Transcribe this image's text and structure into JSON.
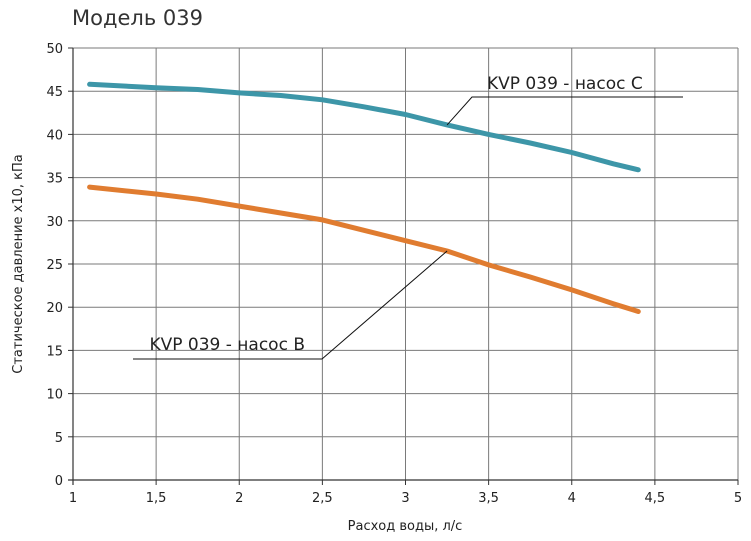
{
  "chart_data": {
    "type": "line",
    "title": "Модель 039",
    "xlabel": "Расход воды, л/с",
    "ylabel": "Статическое давление х10, кПа",
    "xlim": [
      1,
      5
    ],
    "ylim": [
      0,
      50
    ],
    "x_ticks": [
      "1",
      "1,5",
      "2",
      "2,5",
      "3",
      "3,5",
      "4",
      "4,5",
      "5"
    ],
    "y_ticks": [
      "0",
      "5",
      "10",
      "15",
      "20",
      "25",
      "30",
      "35",
      "40",
      "45",
      "50"
    ],
    "grid": true,
    "series": [
      {
        "name": "KVP 039 - насос C",
        "color": "#3d96a8",
        "x": [
          1.1,
          1.5,
          1.75,
          2.0,
          2.25,
          2.5,
          2.75,
          3.0,
          3.25,
          3.5,
          3.75,
          4.0,
          4.25,
          4.4
        ],
        "y": [
          45.8,
          45.4,
          45.2,
          44.8,
          44.5,
          44.0,
          43.2,
          42.3,
          41.1,
          40.0,
          39.0,
          37.9,
          36.6,
          35.9
        ]
      },
      {
        "name": "KVP 039 - насос B",
        "color": "#e07c30",
        "x": [
          1.1,
          1.5,
          1.75,
          2.0,
          2.25,
          2.5,
          2.75,
          3.0,
          3.25,
          3.5,
          3.75,
          4.0,
          4.25,
          4.4
        ],
        "y": [
          33.9,
          33.1,
          32.5,
          31.7,
          30.9,
          30.1,
          28.9,
          27.7,
          26.5,
          24.9,
          23.5,
          22.0,
          20.4,
          19.5
        ]
      }
    ],
    "callouts": [
      {
        "series": 0,
        "label": "KVP 039 - насос C"
      },
      {
        "series": 1,
        "label": "KVP 039 - насос B"
      }
    ]
  }
}
